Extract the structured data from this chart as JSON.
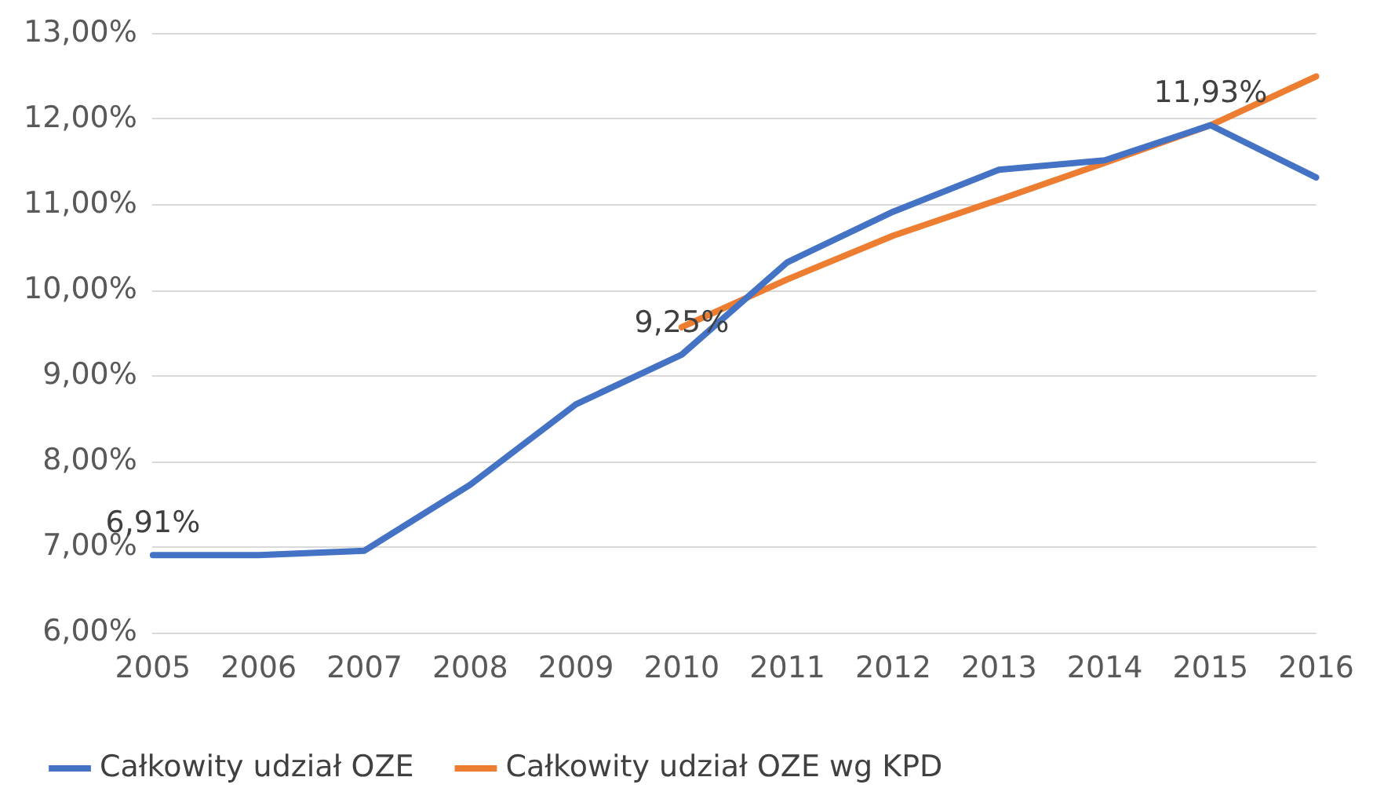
{
  "chart_data": {
    "type": "line",
    "categories": [
      "2005",
      "2006",
      "2007",
      "2008",
      "2009",
      "2010",
      "2011",
      "2012",
      "2013",
      "2014",
      "2015",
      "2016"
    ],
    "series": [
      {
        "name": "Całkowity udział OZE",
        "color": "#4472c4",
        "values": [
          6.91,
          6.91,
          6.96,
          7.73,
          8.67,
          9.25,
          10.33,
          10.92,
          11.41,
          11.52,
          11.93,
          11.32
        ]
      },
      {
        "name": "Całkowity udział OZE wg KPD",
        "color": "#ed7d31",
        "values": [
          null,
          null,
          null,
          null,
          null,
          9.57,
          10.13,
          10.64,
          11.06,
          11.49,
          11.93,
          12.5
        ]
      }
    ],
    "ylim": [
      6,
      13
    ],
    "yticks": [
      {
        "value": 6,
        "label": "6,00%"
      },
      {
        "value": 7,
        "label": "7,00%"
      },
      {
        "value": 8,
        "label": "8,00%"
      },
      {
        "value": 9,
        "label": "9,00%"
      },
      {
        "value": 10,
        "label": "10,00%"
      },
      {
        "value": 11,
        "label": "11,00%"
      },
      {
        "value": 12,
        "label": "12,00%"
      },
      {
        "value": 13,
        "label": "13,00%"
      }
    ],
    "annotations": [
      {
        "text": "6,91%",
        "x": "2005",
        "y": 6.91
      },
      {
        "text": "9,25%",
        "x": "2010",
        "y": 9.25
      },
      {
        "text": "11,93%",
        "x": "2015",
        "y": 11.93
      }
    ],
    "grid": "y",
    "legend": "bottom",
    "marker": "none",
    "line_style": "solid"
  }
}
